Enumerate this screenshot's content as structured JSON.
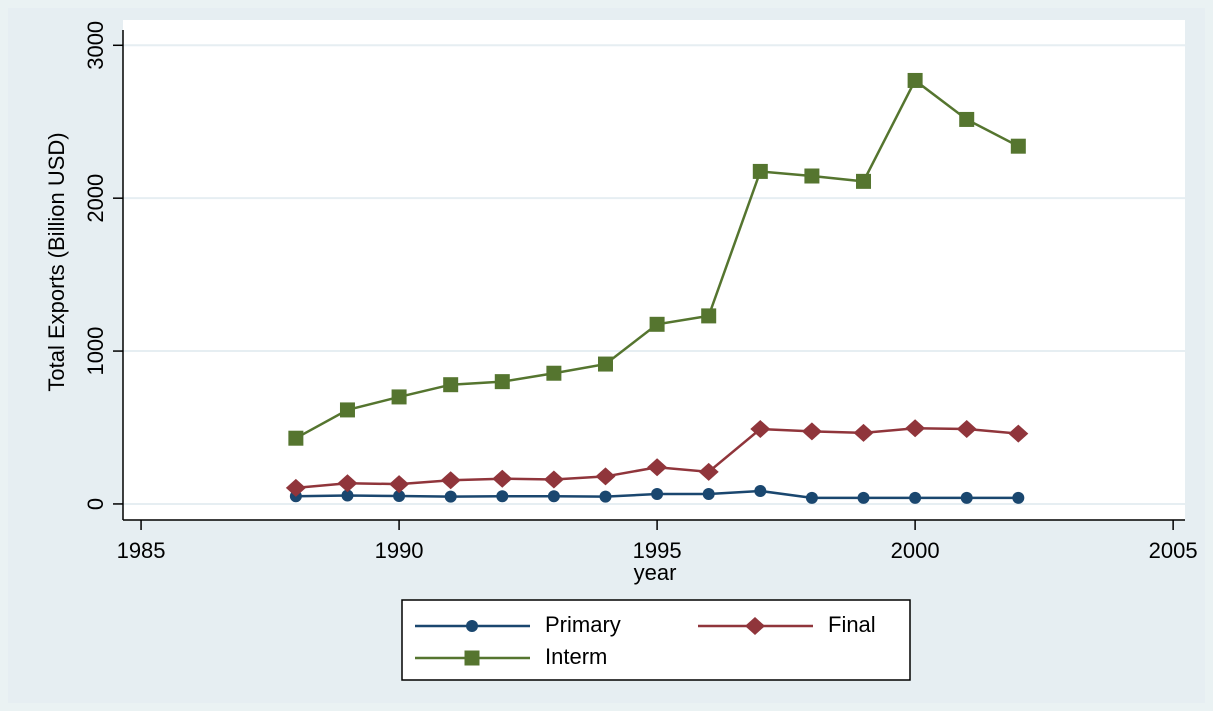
{
  "chart_data": {
    "type": "line",
    "x": [
      1988,
      1989,
      1990,
      1991,
      1992,
      1993,
      1994,
      1995,
      1996,
      1997,
      1998,
      1999,
      2000,
      2001,
      2002
    ],
    "series": [
      {
        "name": "Primary",
        "color": "#1a476f",
        "marker": "circle",
        "values": [
          50,
          55,
          52,
          48,
          50,
          50,
          48,
          65,
          65,
          85,
          40,
          40,
          40,
          40,
          40
        ]
      },
      {
        "name": "Final",
        "color": "#90353b",
        "marker": "diamond",
        "values": [
          105,
          135,
          130,
          155,
          165,
          160,
          180,
          240,
          210,
          490,
          475,
          465,
          495,
          490,
          460
        ]
      },
      {
        "name": "Interm",
        "color": "#55752f",
        "marker": "square",
        "values": [
          430,
          615,
          700,
          780,
          800,
          855,
          915,
          1175,
          1230,
          2175,
          2145,
          2110,
          2770,
          2515,
          2340
        ]
      }
    ],
    "x_label": "year",
    "y_label": "Total Exports (Billion USD)",
    "xlim": [
      1984.65,
      2005.23
    ],
    "ylim": [
      -105,
      3100
    ],
    "xticks": [
      1985,
      1990,
      1995,
      2000,
      2005
    ],
    "yticks": [
      0,
      1000,
      2000,
      3000
    ],
    "grid": true,
    "legend_position": "bottom"
  }
}
